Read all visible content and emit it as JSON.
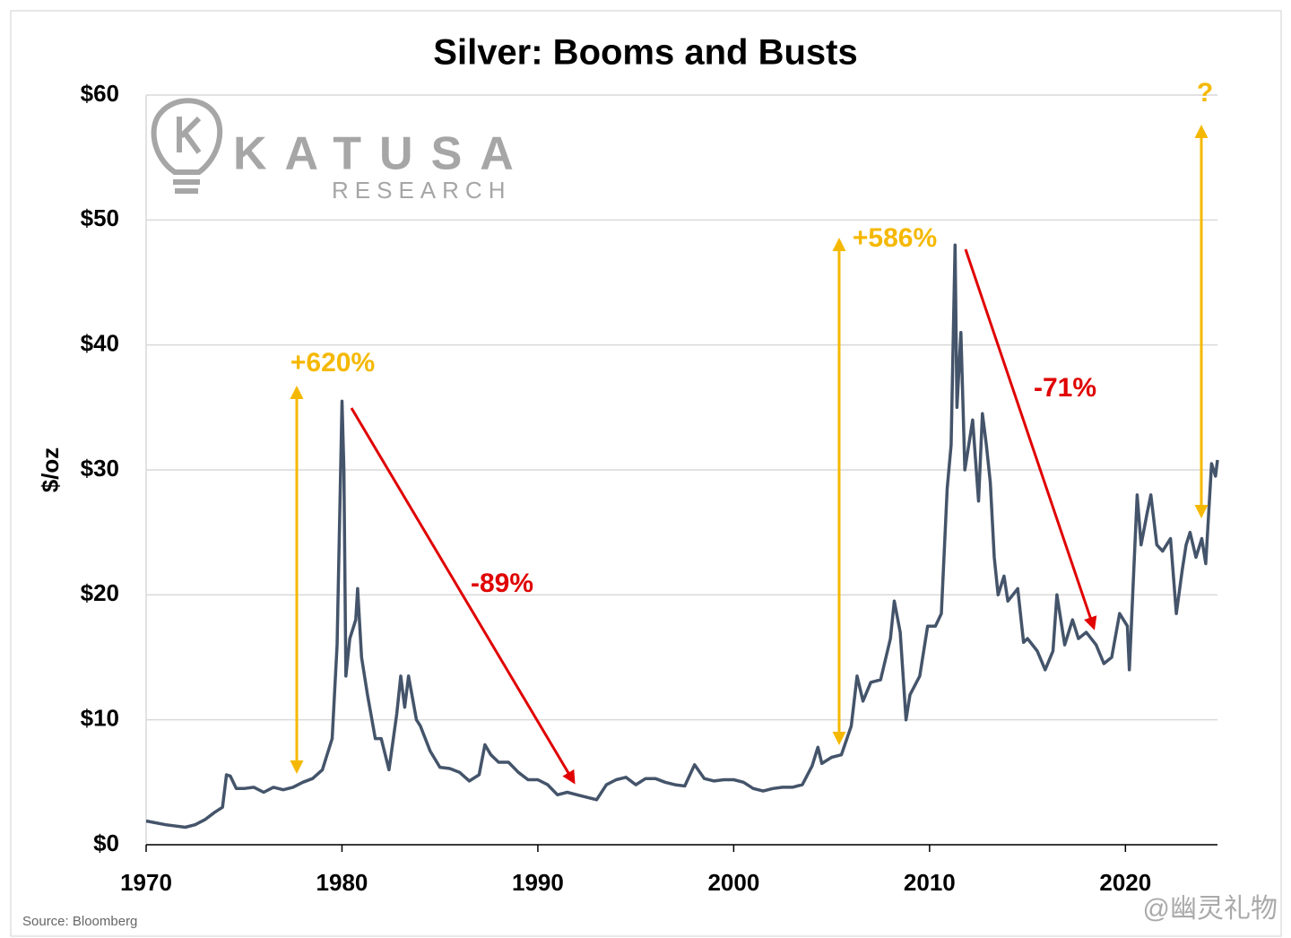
{
  "chart_data": {
    "type": "line",
    "title": "Silver: Booms and Busts",
    "y_label": "$/oz",
    "source": "Source: Bloomberg",
    "watermark": {
      "brand": "KATUSA",
      "sub": "RESEARCH",
      "social": "@幽灵礼物"
    },
    "color": "#44546a",
    "grid": true,
    "xlim": [
      1970,
      2024.7
    ],
    "xticks": [
      1970,
      1980,
      1990,
      2000,
      2010,
      2020
    ],
    "ylim": [
      0,
      60
    ],
    "yticks": [
      {
        "value": 0,
        "label": "$0"
      },
      {
        "value": 10,
        "label": "$10"
      },
      {
        "value": 20,
        "label": "$20"
      },
      {
        "value": 30,
        "label": "$30"
      },
      {
        "value": 40,
        "label": "$40"
      },
      {
        "value": 50,
        "label": "$50"
      },
      {
        "value": 60,
        "label": "$60"
      }
    ],
    "x": [
      1970,
      1971,
      1972,
      1972.5,
      1973,
      1973.5,
      1973.9,
      1974.1,
      1974.3,
      1974.6,
      1975,
      1975.5,
      1976,
      1976.5,
      1977,
      1977.5,
      1978,
      1978.5,
      1979,
      1979.5,
      1979.75,
      1980,
      1980.1,
      1980.2,
      1980.4,
      1980.7,
      1980.8,
      1981,
      1981.3,
      1981.7,
      1982,
      1982.4,
      1982.8,
      1983,
      1983.2,
      1983.4,
      1983.8,
      1984,
      1984.5,
      1985,
      1985.5,
      1986,
      1986.5,
      1987,
      1987.3,
      1987.6,
      1988,
      1988.5,
      1989,
      1989.5,
      1990,
      1990.5,
      1991,
      1991.5,
      1992,
      1992.5,
      1993,
      1993.5,
      1994,
      1994.5,
      1995,
      1995.5,
      1996,
      1996.5,
      1997,
      1997.5,
      1998,
      1998.5,
      1999,
      1999.5,
      2000,
      2000.5,
      2001,
      2001.5,
      2002,
      2002.5,
      2003,
      2003.5,
      2004,
      2004.3,
      2004.5,
      2005,
      2005.5,
      2006,
      2006.3,
      2006.6,
      2007,
      2007.5,
      2008,
      2008.2,
      2008.5,
      2008.8,
      2009,
      2009.5,
      2009.9,
      2010.3,
      2010.6,
      2010.9,
      2011.1,
      2011.3,
      2011.4,
      2011.6,
      2011.8,
      2012,
      2012.2,
      2012.5,
      2012.7,
      2012.9,
      2013.1,
      2013.3,
      2013.5,
      2013.8,
      2014,
      2014.5,
      2014.8,
      2015,
      2015.5,
      2015.9,
      2016.3,
      2016.5,
      2016.9,
      2017.3,
      2017.6,
      2018,
      2018.5,
      2018.9,
      2019.3,
      2019.7,
      2020.1,
      2020.2,
      2020.6,
      2020.8,
      2021.1,
      2021.3,
      2021.6,
      2021.9,
      2022.3,
      2022.6,
      2022.9,
      2023.1,
      2023.3,
      2023.6,
      2023.9,
      2024.1,
      2024.4,
      2024.6,
      2024.7
    ],
    "values": [
      1.9,
      1.6,
      1.4,
      1.6,
      2.0,
      2.6,
      3.0,
      5.6,
      5.5,
      4.5,
      4.5,
      4.6,
      4.2,
      4.6,
      4.4,
      4.6,
      5.0,
      5.3,
      6.0,
      8.5,
      16,
      35.5,
      30,
      13.5,
      16.5,
      18,
      20.5,
      15,
      12,
      8.5,
      8.5,
      6,
      10.5,
      13.5,
      11,
      13.5,
      10,
      9.5,
      7.5,
      6.2,
      6.1,
      5.8,
      5.1,
      5.6,
      8.0,
      7.2,
      6.6,
      6.6,
      5.8,
      5.2,
      5.2,
      4.8,
      4.0,
      4.2,
      4.0,
      3.8,
      3.6,
      4.8,
      5.2,
      5.4,
      4.8,
      5.3,
      5.3,
      5.0,
      4.8,
      4.7,
      6.4,
      5.3,
      5.1,
      5.2,
      5.2,
      5.0,
      4.5,
      4.3,
      4.5,
      4.6,
      4.6,
      4.8,
      6.3,
      7.8,
      6.5,
      7.0,
      7.2,
      9.5,
      13.5,
      11.5,
      13.0,
      13.2,
      16.5,
      19.5,
      17,
      10,
      12,
      13.5,
      17.5,
      17.5,
      18.5,
      28.5,
      32,
      48,
      35,
      41,
      30,
      32,
      34,
      27.5,
      34.5,
      32,
      29,
      23,
      20,
      21.5,
      19.5,
      20.5,
      16.2,
      16.5,
      15.5,
      14,
      15.5,
      20,
      16,
      18,
      16.5,
      17,
      16,
      14.5,
      15,
      18.5,
      17.5,
      14,
      28,
      24,
      26.5,
      28,
      24,
      23.5,
      24.5,
      18.5,
      22,
      24,
      25,
      23,
      24.5,
      22.5,
      30.5,
      29.5,
      30.8
    ],
    "annotations": [
      {
        "text": "+620%",
        "color": "#f5b800"
      },
      {
        "text": "-89%",
        "color": "#e00000"
      },
      {
        "text": "+586%",
        "color": "#f5b800"
      },
      {
        "text": "-71%",
        "color": "#e00000"
      },
      {
        "text": "?",
        "color": "#f5b800"
      }
    ]
  }
}
